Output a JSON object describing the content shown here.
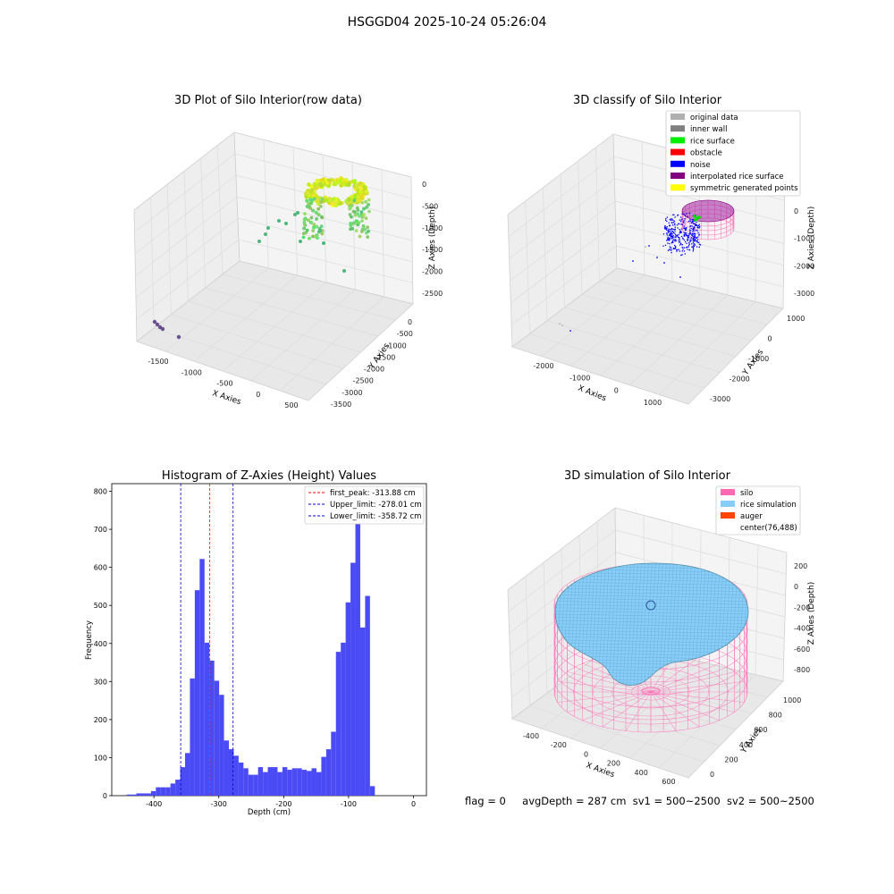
{
  "figure_title": "HSGGD04 2025-10-24 05:26:04",
  "status_line": {
    "flag": "flag = 0",
    "avg_depth": "avgDepth = 287 cm",
    "sv1": "sv1 = 500~2500",
    "sv2": "sv2 = 500~2500"
  },
  "colors": {
    "histogram_bar": "#4b4bf5",
    "first_peak_line": "#ff0000",
    "limit_line": "#0000cc",
    "silo": "#ff69b4",
    "rice_simulation": "#87cefa",
    "auger": "#ff4500",
    "pane_grey": "#f2f2f2"
  },
  "chart_data": [
    {
      "panel": "top-left",
      "type": "scatter",
      "title": "3D Plot of Silo Interior(row data)",
      "xlabel": "X Axies",
      "ylabel": "Y Axies",
      "zlabel": "Z Axies (Depth)",
      "x_ticks": [
        "-1500",
        "-1000",
        "-500",
        "0",
        "500"
      ],
      "y_ticks": [
        "0",
        "-500",
        "-1000",
        "-1500",
        "-2000",
        "-2500",
        "-3000",
        "-3500"
      ],
      "z_ticks": [
        "0",
        "-500",
        "-1000",
        "-1500",
        "-2000",
        "-2500"
      ]
    },
    {
      "panel": "top-right",
      "type": "scatter",
      "title": "3D classify of Silo Interior",
      "xlabel": "X Axies",
      "ylabel": "Y Axies",
      "zlabel": "Z Axies (Depth)",
      "x_ticks": [
        "-2000",
        "-1000",
        "0",
        "1000"
      ],
      "y_ticks": [
        "1000",
        "0",
        "-1000",
        "-2000",
        "-3000"
      ],
      "z_ticks": [
        "0",
        "-1000",
        "-2000",
        "-3000"
      ],
      "legend_position": "top-right",
      "legend": [
        {
          "label": "original data",
          "color": "#b0b0b0"
        },
        {
          "label": "inner wall",
          "color": "#808080"
        },
        {
          "label": "rice surface",
          "color": "#00ee00"
        },
        {
          "label": "obstacle",
          "color": "#ff0000"
        },
        {
          "label": "noise",
          "color": "#0000ff"
        },
        {
          "label": "interpolated rice surface",
          "color": "#800080"
        },
        {
          "label": "symmetric generated points",
          "color": "#ffff00"
        }
      ]
    },
    {
      "panel": "bottom-left",
      "type": "bar",
      "title": "Histogram of Z-Axies (Height) Values",
      "xlabel": "Depth (cm)",
      "ylabel": "Frequency",
      "xlim": [
        -465,
        20
      ],
      "ylim": [
        0,
        820
      ],
      "bin_width": 7.5,
      "x_ticks": [
        -400,
        -300,
        -200,
        -100,
        0
      ],
      "y_ticks": [
        0,
        100,
        200,
        300,
        400,
        500,
        600,
        700,
        800
      ],
      "bins": [
        {
          "x0": -442,
          "v": 3
        },
        {
          "x0": -434.5,
          "v": 3
        },
        {
          "x0": -427,
          "v": 6
        },
        {
          "x0": -419.5,
          "v": 6
        },
        {
          "x0": -412,
          "v": 6
        },
        {
          "x0": -404.5,
          "v": 12
        },
        {
          "x0": -397,
          "v": 22
        },
        {
          "x0": -389.5,
          "v": 22
        },
        {
          "x0": -382,
          "v": 22
        },
        {
          "x0": -374.5,
          "v": 32
        },
        {
          "x0": -367,
          "v": 42
        },
        {
          "x0": -359.5,
          "v": 75
        },
        {
          "x0": -352,
          "v": 112
        },
        {
          "x0": -344.5,
          "v": 308
        },
        {
          "x0": -337,
          "v": 540
        },
        {
          "x0": -329.5,
          "v": 622
        },
        {
          "x0": -322,
          "v": 402
        },
        {
          "x0": -314.5,
          "v": 355
        },
        {
          "x0": -307,
          "v": 302
        },
        {
          "x0": -299.5,
          "v": 265
        },
        {
          "x0": -292,
          "v": 145
        },
        {
          "x0": -284.5,
          "v": 122
        },
        {
          "x0": -277,
          "v": 105
        },
        {
          "x0": -269.5,
          "v": 87
        },
        {
          "x0": -262,
          "v": 72
        },
        {
          "x0": -254.5,
          "v": 55
        },
        {
          "x0": -247,
          "v": 55
        },
        {
          "x0": -239.5,
          "v": 75
        },
        {
          "x0": -232,
          "v": 62
        },
        {
          "x0": -224.5,
          "v": 75
        },
        {
          "x0": -217,
          "v": 75
        },
        {
          "x0": -209.5,
          "v": 62
        },
        {
          "x0": -202,
          "v": 75
        },
        {
          "x0": -194.5,
          "v": 68
        },
        {
          "x0": -187,
          "v": 72
        },
        {
          "x0": -179.5,
          "v": 72
        },
        {
          "x0": -172,
          "v": 68
        },
        {
          "x0": -164.5,
          "v": 65
        },
        {
          "x0": -157,
          "v": 72
        },
        {
          "x0": -149.5,
          "v": 62
        },
        {
          "x0": -142,
          "v": 102
        },
        {
          "x0": -134.5,
          "v": 122
        },
        {
          "x0": -127,
          "v": 168
        },
        {
          "x0": -119.5,
          "v": 378
        },
        {
          "x0": -112,
          "v": 402
        },
        {
          "x0": -104.5,
          "v": 508
        },
        {
          "x0": -97,
          "v": 612
        },
        {
          "x0": -89.5,
          "v": 778
        },
        {
          "x0": -82,
          "v": 442
        },
        {
          "x0": -74.5,
          "v": 525
        },
        {
          "x0": -67,
          "v": 25
        }
      ],
      "vlines": [
        {
          "x": -313.88,
          "color": "#ff0000"
        },
        {
          "x": -278.01,
          "color": "#0000cc"
        },
        {
          "x": -358.72,
          "color": "#0000cc"
        }
      ],
      "legend_position": "top-right",
      "legend": [
        {
          "label": "first_peak: -313.88 cm",
          "color": "#ff0000"
        },
        {
          "label": "Upper_limit: -278.01 cm",
          "color": "#0000cc"
        },
        {
          "label": "Lower_limit: -358.72 cm",
          "color": "#0000cc"
        }
      ]
    },
    {
      "panel": "bottom-right",
      "type": "scatter",
      "title": "3D simulation of Silo Interior",
      "xlabel": "X Axies",
      "ylabel": "Y Axies",
      "zlabel": "Z Axies (Depth)",
      "x_ticks": [
        "-400",
        "-200",
        "0",
        "200",
        "400",
        "600"
      ],
      "y_ticks": [
        "0",
        "200",
        "400",
        "600",
        "800",
        "1000"
      ],
      "z_ticks": [
        "200",
        "0",
        "-200",
        "-400",
        "-600",
        "-800"
      ],
      "legend_position": "top-right",
      "legend": [
        {
          "label": "silo",
          "color": "#ff69b4"
        },
        {
          "label": "rice simulation",
          "color": "#87cefa"
        },
        {
          "label": "auger",
          "color": "#ff4500"
        },
        {
          "label": "center(76,488)",
          "color": ""
        }
      ]
    }
  ]
}
